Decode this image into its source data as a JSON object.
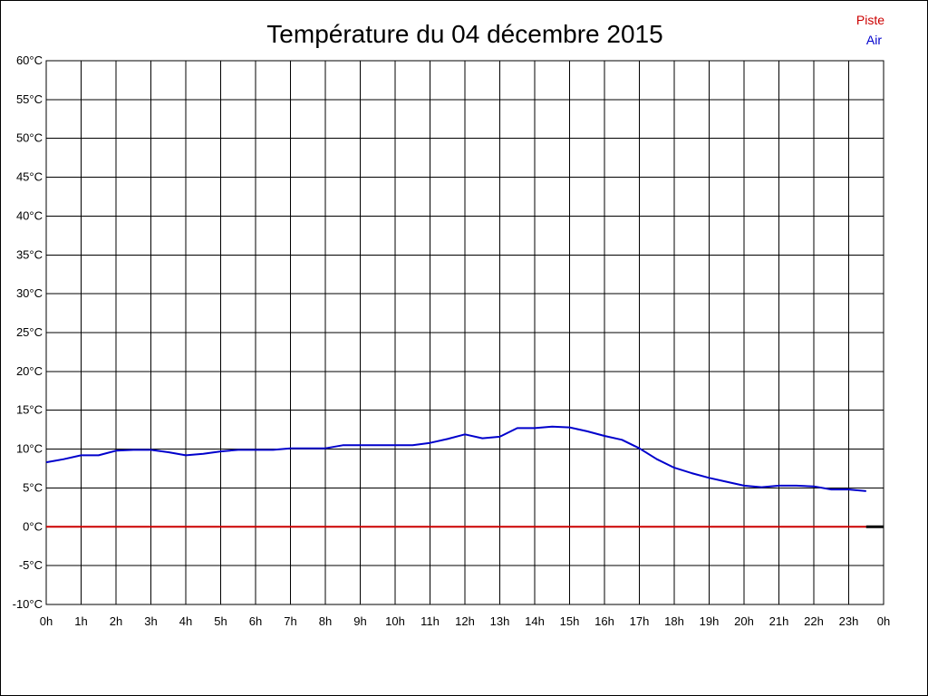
{
  "chart_data": {
    "type": "line",
    "title": "Température du 04 décembre 2015",
    "xlabel": "",
    "ylabel": "",
    "x": [
      "0:00",
      "0:30",
      "1:00",
      "1:30",
      "2:00",
      "2:30",
      "3:00",
      "3:30",
      "4:00",
      "4:30",
      "5:00",
      "5:30",
      "6:00",
      "6:30",
      "7:00",
      "7:30",
      "8:00",
      "8:30",
      "9:00",
      "9:30",
      "10:00",
      "10:30",
      "11:00",
      "11:30",
      "12:00",
      "12:30",
      "13:00",
      "13:30",
      "14:00",
      "14:30",
      "15:00",
      "15:30",
      "16:00",
      "16:30",
      "17:00",
      "17:30",
      "18:00",
      "18:30",
      "19:00",
      "19:30",
      "20:00",
      "20:30",
      "21:00",
      "21:30",
      "22:00",
      "22:30",
      "23:00",
      "23:30"
    ],
    "x_ticks": [
      "0h",
      "1h",
      "2h",
      "3h",
      "4h",
      "5h",
      "6h",
      "7h",
      "8h",
      "9h",
      "10h",
      "11h",
      "12h",
      "13h",
      "14h",
      "15h",
      "16h",
      "17h",
      "18h",
      "19h",
      "20h",
      "21h",
      "22h",
      "23h",
      "0h"
    ],
    "y_ticks": [
      "60°C",
      "55°C",
      "50°C",
      "45°C",
      "40°C",
      "35°C",
      "30°C",
      "25°C",
      "20°C",
      "15°C",
      "10°C",
      "5°C",
      "0°C",
      "-5°C",
      "-10°C"
    ],
    "ylim": [
      -10,
      60
    ],
    "grid": true,
    "legend_position": "top-right",
    "series": [
      {
        "name": "Piste",
        "color": "#cc0000",
        "values": [
          0,
          0,
          0,
          0,
          0,
          0,
          0,
          0,
          0,
          0,
          0,
          0,
          0,
          0,
          0,
          0,
          0,
          0,
          0,
          0,
          0,
          0,
          0,
          0,
          0,
          0,
          0,
          0,
          0,
          0,
          0,
          0,
          0,
          0,
          0,
          0,
          0,
          0,
          0,
          0,
          0,
          0,
          0,
          0,
          0,
          0,
          0,
          0
        ]
      },
      {
        "name": "Air",
        "color": "#0000cc",
        "values": [
          8.3,
          8.7,
          9.2,
          9.2,
          9.8,
          9.9,
          9.9,
          9.6,
          9.2,
          9.4,
          9.7,
          9.9,
          9.9,
          9.9,
          10.1,
          10.1,
          10.1,
          10.5,
          10.5,
          10.5,
          10.5,
          10.5,
          10.8,
          11.3,
          11.9,
          11.4,
          11.6,
          12.7,
          12.7,
          12.9,
          12.8,
          12.3,
          11.7,
          11.2,
          10.1,
          8.7,
          7.6,
          6.9,
          6.3,
          5.8,
          5.3,
          5.1,
          5.3,
          5.3,
          5.2,
          4.8,
          4.8,
          4.6
        ]
      }
    ]
  }
}
